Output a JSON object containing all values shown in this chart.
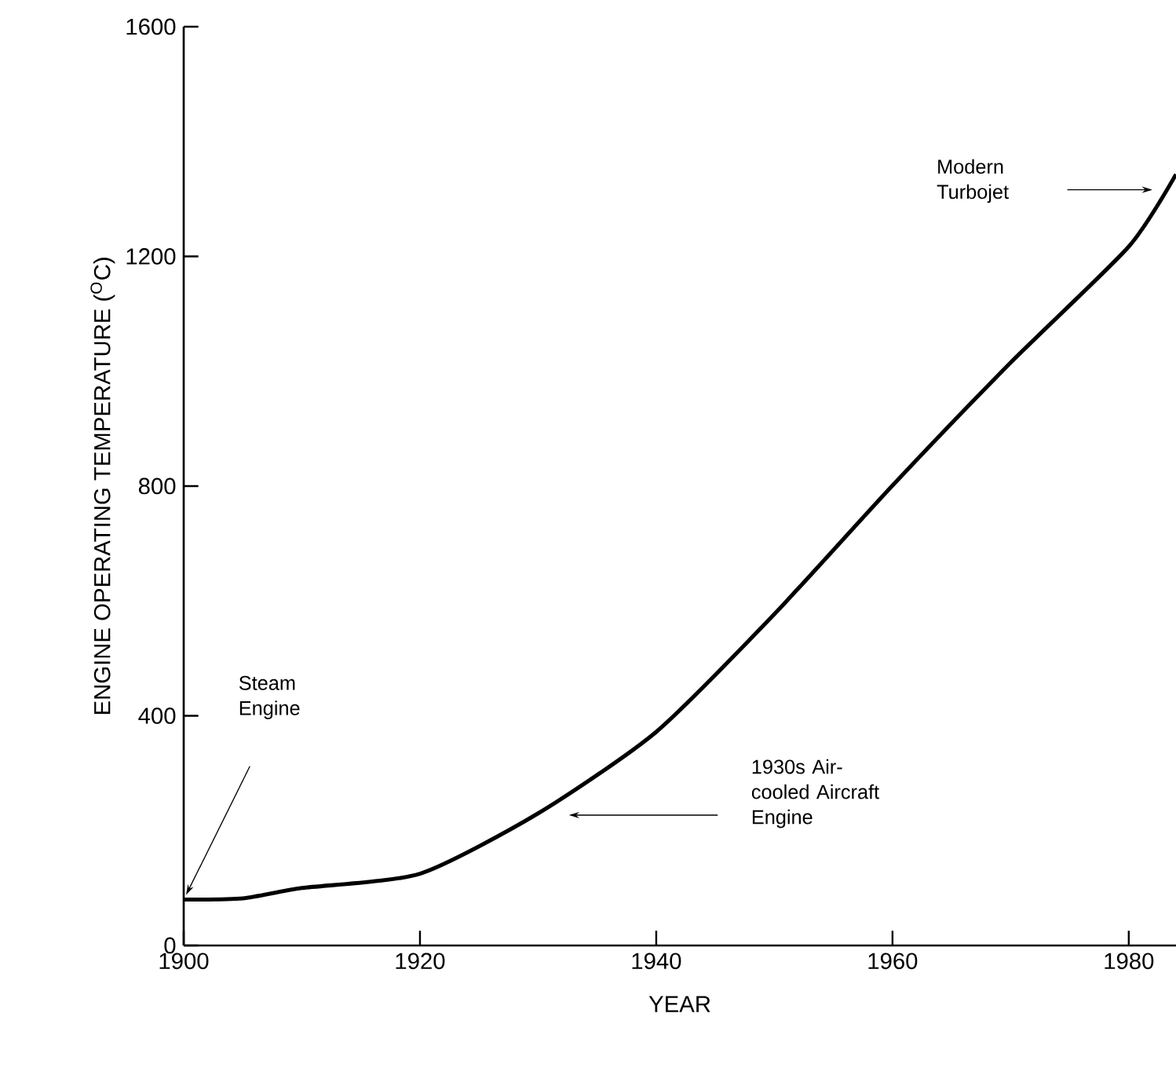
{
  "chart_data": {
    "type": "line",
    "xlabel": "YEAR",
    "ylabel": "ENGINE OPERATING TEMPERATURE ($^{O}$C)",
    "x": [
      1900,
      1905,
      1910,
      1920,
      1930,
      1940,
      1950,
      1960,
      1970,
      1980,
      1984
    ],
    "series": [
      {
        "color": "#000000",
        "values": [
          80,
          82,
          100,
          125,
          230,
          372,
          577,
          801,
          1015,
          1217,
          1343
        ]
      }
    ],
    "xlim": [
      1900,
      1984
    ],
    "ylim": [
      0,
      1600
    ],
    "xticks": [
      1900,
      1920,
      1940,
      1960,
      1980
    ],
    "yticks": [
      0,
      400,
      800,
      1200,
      1600
    ],
    "grid": false,
    "marker": "none",
    "line_style": "solid",
    "annotations": [
      "Steam Engine",
      "1930s Air-cooled Aircraft Engine",
      "Modern Turbojet"
    ]
  }
}
